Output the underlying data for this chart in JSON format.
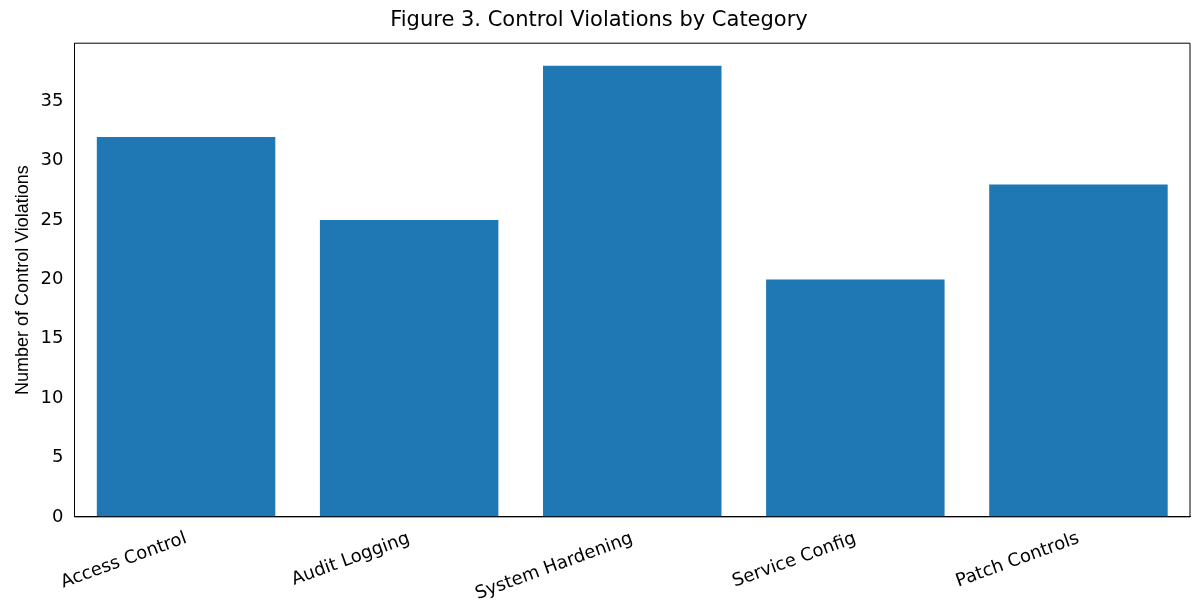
{
  "chart_data": {
    "type": "bar",
    "title": "Figure 3. Control Violations by Category",
    "ylabel": "Number of Control Violations",
    "categories": [
      "Access Control",
      "Audit Logging",
      "System Hardening",
      "Service Config",
      "Patch Controls"
    ],
    "values": [
      32,
      25,
      38,
      20,
      28
    ],
    "color": "#1f77b4",
    "ylim": [
      0,
      39.9
    ],
    "yticks": [
      0,
      5,
      10,
      15,
      20,
      25,
      30,
      35
    ],
    "grid": false,
    "legend": false
  }
}
